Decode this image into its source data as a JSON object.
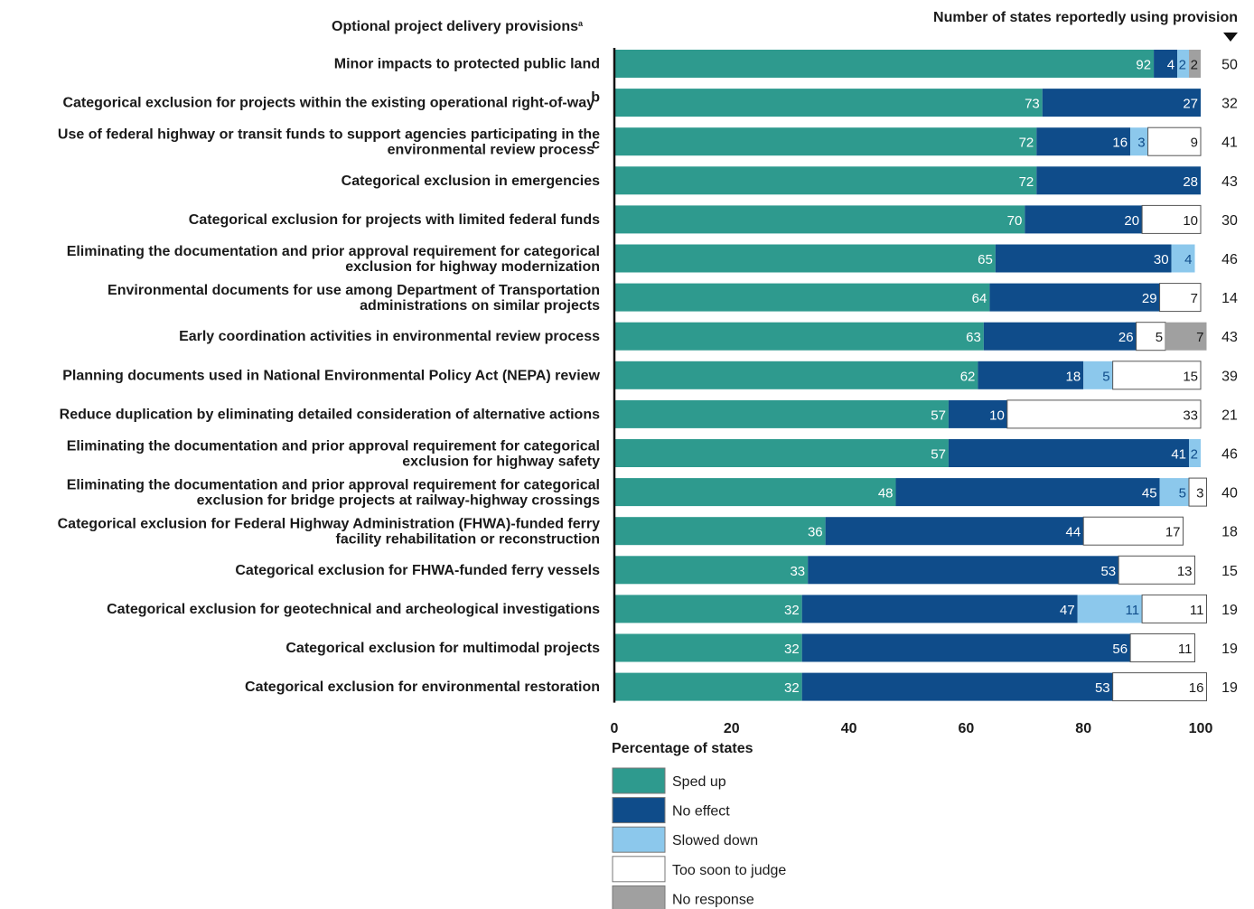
{
  "chart_data": {
    "type": "bar",
    "orientation": "horizontal",
    "stacked": true,
    "category_header": "Optional project delivery provisions",
    "category_header_note": "a",
    "count_header": "Number of states reportedly using provision",
    "xlabel": "Percentage of states",
    "xlim": [
      0,
      100
    ],
    "xticks": [
      "0",
      "20",
      "40",
      "60",
      "80",
      "100"
    ],
    "legend_position": "bottom-left",
    "categories": [
      {
        "label": "Minor impacts to protected public land",
        "note": "",
        "count": "50"
      },
      {
        "label": "Categorical exclusion for projects within the existing operational right-of-way",
        "note": "b",
        "count": "32"
      },
      {
        "label": "Use of federal highway or transit funds to support agencies participating in the",
        "label2": "environmental review process",
        "note": "c",
        "count": "41"
      },
      {
        "label": "Categorical exclusion in emergencies",
        "note": "",
        "count": "43"
      },
      {
        "label": "Categorical exclusion for projects with limited federal funds",
        "note": "",
        "count": "30"
      },
      {
        "label": "Eliminating the documentation and prior approval requirement for categorical",
        "label2": "exclusion for highway modernization",
        "note": "",
        "count": "46"
      },
      {
        "label": "Environmental documents for use among Department of Transportation",
        "label2": "administrations on similar projects",
        "note": "",
        "count": "14"
      },
      {
        "label": "Early coordination activities in environmental review process",
        "note": "",
        "count": "43"
      },
      {
        "label": "Planning documents used in National Environmental Policy Act (NEPA) review",
        "note": "",
        "count": "39"
      },
      {
        "label": "Reduce duplication by eliminating detailed consideration of alternative actions",
        "note": "",
        "count": "21"
      },
      {
        "label": "Eliminating the documentation and prior approval requirement for categorical",
        "label2": "exclusion for highway safety",
        "note": "",
        "count": "46"
      },
      {
        "label": "Eliminating the documentation and prior approval requirement for categorical",
        "label2": "exclusion for bridge projects at railway-highway crossings",
        "note": "",
        "count": "40"
      },
      {
        "label": "Categorical exclusion for Federal Highway Administration (FHWA)-funded ferry",
        "label2": "facility rehabilitation or reconstruction",
        "note": "",
        "count": "18"
      },
      {
        "label": "Categorical exclusion for FHWA-funded ferry vessels",
        "note": "",
        "count": "15"
      },
      {
        "label": "Categorical exclusion for geotechnical and archeological investigations",
        "note": "",
        "count": "19"
      },
      {
        "label": "Categorical exclusion for multimodal projects",
        "note": "",
        "count": "19"
      },
      {
        "label": "Categorical exclusion for environmental restoration",
        "note": "",
        "count": "19"
      }
    ],
    "series": [
      {
        "name": "Sped up",
        "color": "#2e9a8e",
        "label_color": "#ffffff",
        "values": [
          92,
          73,
          72,
          72,
          70,
          65,
          64,
          63,
          62,
          57,
          57,
          48,
          36,
          33,
          32,
          32,
          32
        ]
      },
      {
        "name": "No effect",
        "color": "#0f4c8a",
        "label_color": "#ffffff",
        "values": [
          4,
          27,
          16,
          28,
          20,
          30,
          29,
          26,
          18,
          10,
          41,
          45,
          44,
          53,
          47,
          56,
          53
        ]
      },
      {
        "name": "Slowed down",
        "color": "#8cc8ec",
        "label_color": "#0f4c8a",
        "values": [
          2,
          0,
          3,
          0,
          0,
          4,
          0,
          0,
          5,
          0,
          2,
          5,
          0,
          0,
          11,
          0,
          0
        ]
      },
      {
        "name": "Too soon to judge",
        "color": "#ffffff",
        "label_color": "#1a1a1a",
        "values": [
          0,
          0,
          9,
          0,
          10,
          0,
          7,
          5,
          15,
          33,
          0,
          3,
          17,
          13,
          11,
          11,
          16
        ]
      },
      {
        "name": "No response",
        "color": "#a0a0a0",
        "label_color": "#1a1a1a",
        "values": [
          2,
          0,
          0,
          0,
          0,
          0,
          0,
          7,
          0,
          0,
          0,
          0,
          0,
          0,
          0,
          0,
          0
        ]
      }
    ]
  }
}
